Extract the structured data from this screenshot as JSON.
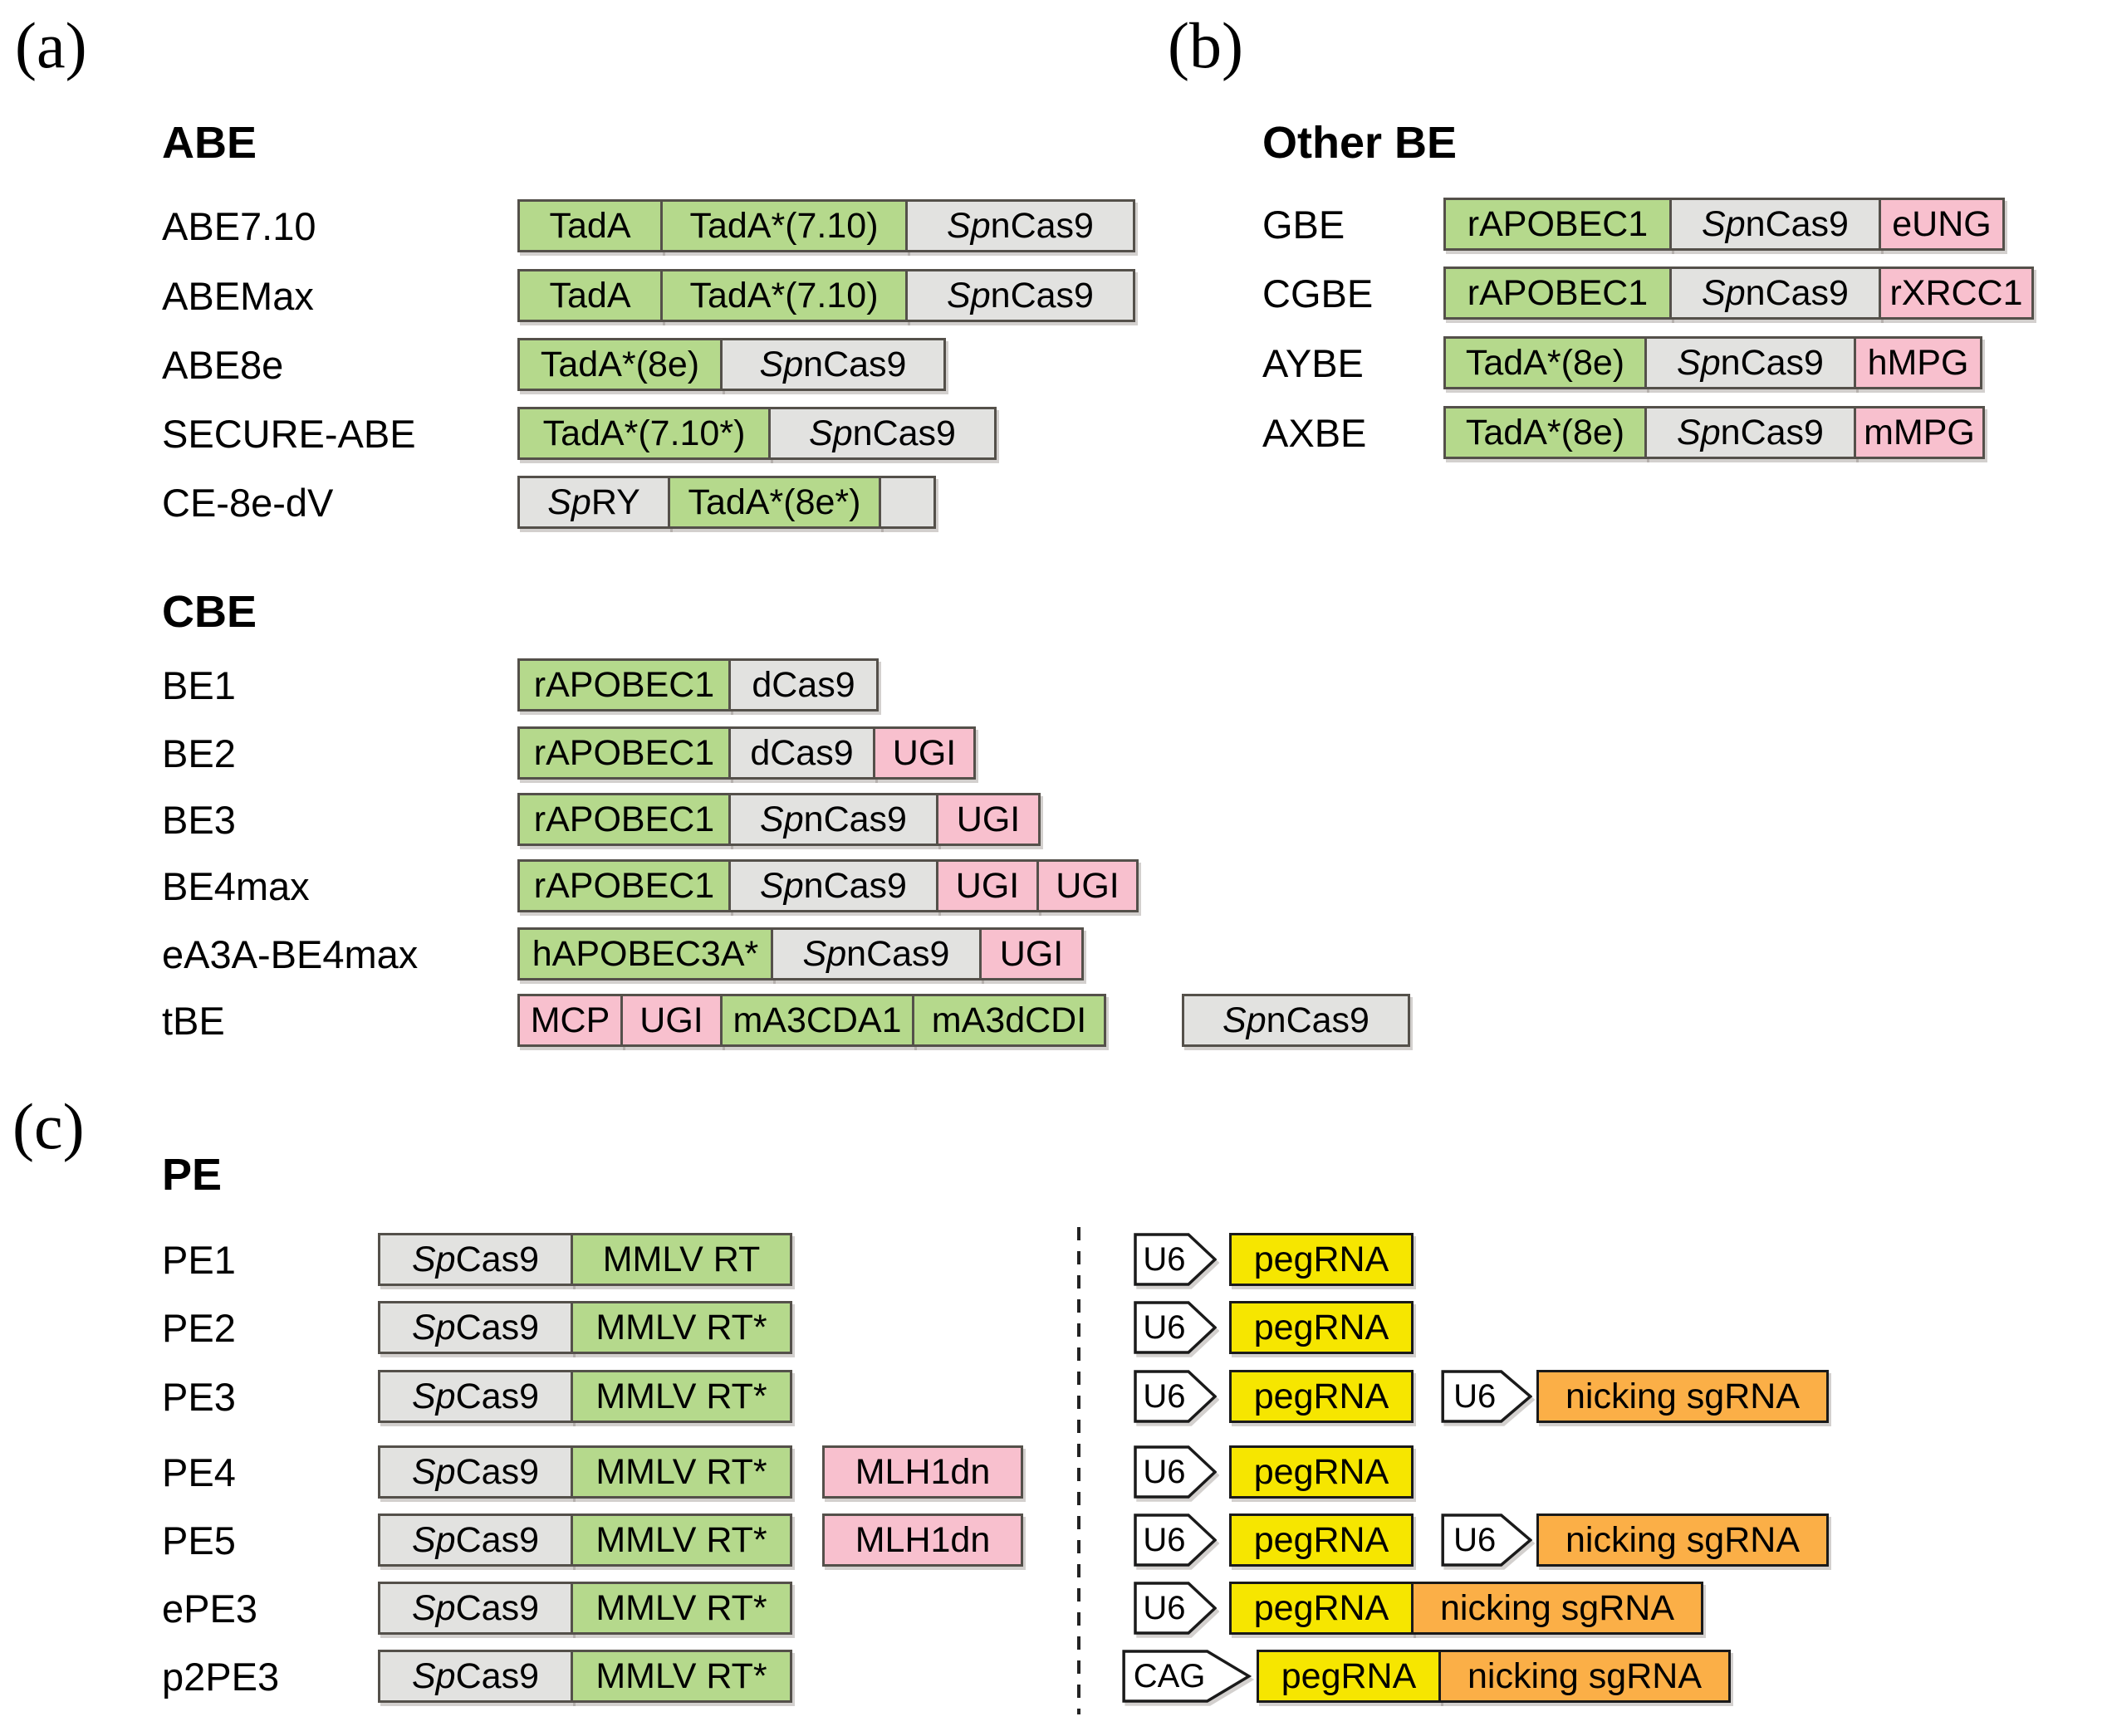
{
  "palette": {
    "deaminase_green": "#B5D98C",
    "cas_gray": "#E2E2E0",
    "accessory_pink": "#F8C0CE",
    "pegrna_yellow": "#F6E600",
    "sgrna_orange": "#FBAF47",
    "promoter_white": "#FFFFFF",
    "box_border": "#54504A",
    "rna_border": "#1A1A1A"
  },
  "a_letter": "(a)",
  "b_letter": "(b)",
  "c_letter": "(c)",
  "abe": {
    "title": "ABE",
    "rows": [
      {
        "label": "ABE7.10",
        "segments": [
          {
            "t": "TadA",
            "c": "green"
          },
          {
            "t": "TadA*(7.10)",
            "c": "green"
          },
          {
            "it": "Sp",
            "t": "nCas9",
            "c": "gray"
          }
        ]
      },
      {
        "label": "ABEMax",
        "segments": [
          {
            "t": "TadA",
            "c": "green"
          },
          {
            "t": "TadA*(7.10)",
            "c": "green"
          },
          {
            "it": "Sp",
            "t": "nCas9",
            "c": "gray"
          }
        ]
      },
      {
        "label": "ABE8e",
        "segments": [
          {
            "t": "TadA*(8e)",
            "c": "green"
          },
          {
            "it": "Sp",
            "t": "nCas9",
            "c": "gray"
          }
        ]
      },
      {
        "label": "SECURE-ABE",
        "segments": [
          {
            "t": "TadA*(7.10*)",
            "c": "green"
          },
          {
            "it": "Sp",
            "t": "nCas9",
            "c": "gray"
          }
        ]
      },
      {
        "label": "CE-8e-dV",
        "segments": [
          {
            "it": "Sp",
            "t": "RY",
            "c": "gray"
          },
          {
            "t": "TadA*(8e*)",
            "c": "green"
          },
          {
            "t": "",
            "c": "gray"
          }
        ]
      }
    ]
  },
  "cbe": {
    "title": "CBE",
    "rows": [
      {
        "label": "BE1",
        "segments": [
          {
            "t": "rAPOBEC1",
            "c": "green"
          },
          {
            "t": "dCas9",
            "c": "gray"
          }
        ]
      },
      {
        "label": "BE2",
        "segments": [
          {
            "t": "rAPOBEC1",
            "c": "green"
          },
          {
            "t": "dCas9",
            "c": "gray"
          },
          {
            "t": "UGI",
            "c": "pink"
          }
        ]
      },
      {
        "label": "BE3",
        "segments": [
          {
            "t": "rAPOBEC1",
            "c": "green"
          },
          {
            "it": "Sp",
            "t": "nCas9",
            "c": "gray"
          },
          {
            "t": "UGI",
            "c": "pink"
          }
        ]
      },
      {
        "label": "BE4max",
        "segments": [
          {
            "t": "rAPOBEC1",
            "c": "green"
          },
          {
            "it": "Sp",
            "t": "nCas9",
            "c": "gray"
          },
          {
            "t": "UGI",
            "c": "pink"
          },
          {
            "t": "UGI",
            "c": "pink"
          }
        ]
      },
      {
        "label": "eA3A-BE4max",
        "segments": [
          {
            "t": "hAPOBEC3A*",
            "c": "green"
          },
          {
            "it": "Sp",
            "t": "nCas9",
            "c": "gray"
          },
          {
            "t": "UGI",
            "c": "pink"
          }
        ]
      },
      {
        "label": "tBE",
        "segments": [
          {
            "t": "MCP",
            "c": "pink"
          },
          {
            "t": "UGI",
            "c": "pink"
          },
          {
            "t": "mA3CDA1",
            "c": "green"
          },
          {
            "t": "mA3dCDI",
            "c": "green"
          }
        ],
        "extra": [
          {
            "it": "Sp",
            "t": "nCas9",
            "c": "gray"
          }
        ]
      }
    ]
  },
  "other": {
    "title": "Other BE",
    "rows": [
      {
        "label": "GBE",
        "segments": [
          {
            "t": "rAPOBEC1",
            "c": "green"
          },
          {
            "it": "Sp",
            "t": "nCas9",
            "c": "gray"
          },
          {
            "t": "eUNG",
            "c": "pink"
          }
        ]
      },
      {
        "label": "CGBE",
        "segments": [
          {
            "t": "rAPOBEC1",
            "c": "green"
          },
          {
            "it": "Sp",
            "t": "nCas9",
            "c": "gray"
          },
          {
            "t": "rXRCC1",
            "c": "pink"
          }
        ]
      },
      {
        "label": "AYBE",
        "segments": [
          {
            "t": "TadA*(8e)",
            "c": "green"
          },
          {
            "it": "Sp",
            "t": "nCas9",
            "c": "gray"
          },
          {
            "t": "hMPG",
            "c": "pink"
          }
        ]
      },
      {
        "label": "AXBE",
        "segments": [
          {
            "t": "TadA*(8e)",
            "c": "green"
          },
          {
            "it": "Sp",
            "t": "nCas9",
            "c": "gray"
          },
          {
            "t": "mMPG",
            "c": "pink"
          }
        ]
      }
    ]
  },
  "pe": {
    "title": "PE",
    "rows": [
      {
        "label": "PE1",
        "protein": [
          {
            "it": "Sp",
            "t": "Cas9",
            "c": "gray"
          },
          {
            "t": "MMLV RT",
            "c": "green"
          }
        ],
        "cassette": [
          {
            "t": "U6",
            "shape": "arrow"
          },
          {
            "t": "pegRNA",
            "c": "yellow"
          }
        ]
      },
      {
        "label": "PE2",
        "protein": [
          {
            "it": "Sp",
            "t": "Cas9",
            "c": "gray"
          },
          {
            "t": "MMLV RT*",
            "c": "green"
          }
        ],
        "cassette": [
          {
            "t": "U6",
            "shape": "arrow"
          },
          {
            "t": "pegRNA",
            "c": "yellow"
          }
        ]
      },
      {
        "label": "PE3",
        "protein": [
          {
            "it": "Sp",
            "t": "Cas9",
            "c": "gray"
          },
          {
            "t": "MMLV RT*",
            "c": "green"
          }
        ],
        "cassette": [
          {
            "t": "U6",
            "shape": "arrow"
          },
          {
            "t": "pegRNA",
            "c": "yellow"
          }
        ],
        "cassette2": [
          {
            "t": "U6",
            "shape": "arrow"
          },
          {
            "t": "nicking sgRNA",
            "c": "orange"
          }
        ]
      },
      {
        "label": "PE4",
        "protein": [
          {
            "it": "Sp",
            "t": "Cas9",
            "c": "gray"
          },
          {
            "t": "MMLV RT*",
            "c": "green"
          }
        ],
        "accessory": [
          {
            "t": "MLH1dn",
            "c": "pink"
          }
        ],
        "cassette": [
          {
            "t": "U6",
            "shape": "arrow"
          },
          {
            "t": "pegRNA",
            "c": "yellow"
          }
        ]
      },
      {
        "label": "PE5",
        "protein": [
          {
            "it": "Sp",
            "t": "Cas9",
            "c": "gray"
          },
          {
            "t": "MMLV RT*",
            "c": "green"
          }
        ],
        "accessory": [
          {
            "t": "MLH1dn",
            "c": "pink"
          }
        ],
        "cassette": [
          {
            "t": "U6",
            "shape": "arrow"
          },
          {
            "t": "pegRNA",
            "c": "yellow"
          }
        ],
        "cassette2": [
          {
            "t": "U6",
            "shape": "arrow"
          },
          {
            "t": "nicking sgRNA",
            "c": "orange"
          }
        ]
      },
      {
        "label": "ePE3",
        "protein": [
          {
            "it": "Sp",
            "t": "Cas9",
            "c": "gray"
          },
          {
            "t": "MMLV RT*",
            "c": "green"
          }
        ],
        "cassette": [
          {
            "t": "U6",
            "shape": "arrow"
          },
          {
            "t": "pegRNA",
            "c": "yellow"
          },
          {
            "t": "nicking sgRNA",
            "c": "orange"
          }
        ]
      },
      {
        "label": "p2PE3",
        "protein": [
          {
            "it": "Sp",
            "t": "Cas9",
            "c": "gray"
          },
          {
            "t": "MMLV RT*",
            "c": "green"
          }
        ],
        "cassette": [
          {
            "t": "CAG",
            "shape": "arrow"
          },
          {
            "t": "pegRNA",
            "c": "yellow"
          },
          {
            "t": "nicking sgRNA",
            "c": "orange"
          }
        ]
      }
    ]
  }
}
